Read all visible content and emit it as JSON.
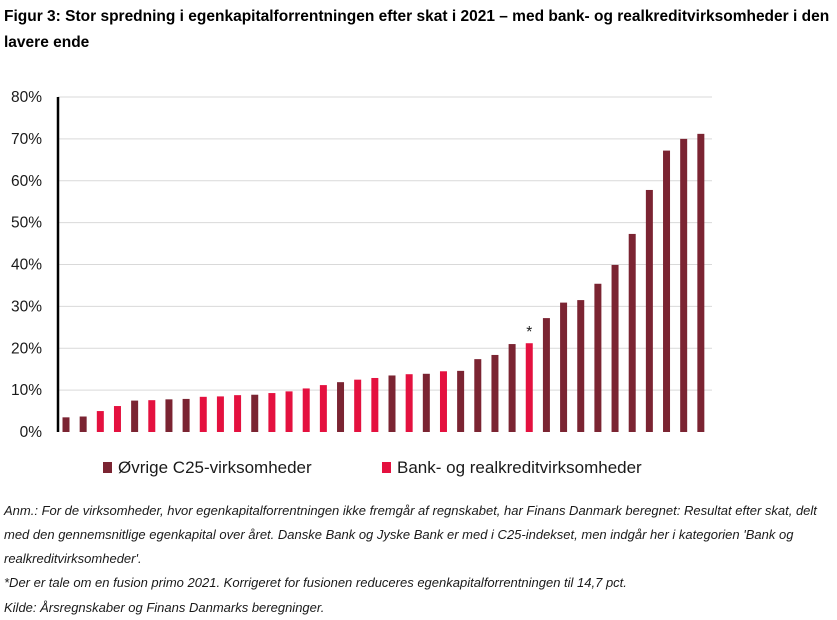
{
  "title": "Figur 3: Stor spredning i egenkapitalforrentningen efter skat i 2021 – med bank- og realkreditvirksomheder i den lavere ende",
  "notes": {
    "anm": "Anm.: For de virksomheder, hvor egenkapitalforrentningen ikke fremgår af regnskabet, har Finans Danmark beregnet: Resultat efter skat, delt med den gennemsnitlige egenkapital over året. Danske Bank og Jyske Bank er med i C25-indekset, men indgår her i kategorien 'Bank og realkreditvirksomheder'.",
    "footnote": "*Der er tale om en fusion primo 2021. Korrigeret for fusionen reduceres egenkapitalforrentningen til 14,7 pct.",
    "kilde": "Kilde: Årsregnskaber og Finans Danmarks beregninger."
  },
  "colors": {
    "other": "#7b2432",
    "bank": "#e4113f"
  },
  "chart_data": {
    "type": "bar",
    "title": "",
    "xlabel": "",
    "ylabel": "",
    "ylim": [
      0,
      80
    ],
    "yticks": [
      "0%",
      "10%",
      "20%",
      "30%",
      "40%",
      "50%",
      "60%",
      "70%",
      "80%"
    ],
    "grid": true,
    "legend_position": "bottom",
    "series": [
      {
        "name": "Øvrige C25-virksomheder",
        "key": "other"
      },
      {
        "name": "Bank- og realkreditvirksomheder",
        "key": "bank"
      }
    ],
    "values": [
      3.5,
      3.7,
      5.0,
      6.2,
      7.5,
      7.6,
      7.8,
      7.9,
      8.4,
      8.5,
      8.8,
      8.9,
      9.3,
      9.7,
      10.4,
      11.2,
      11.9,
      12.5,
      12.9,
      13.5,
      13.8,
      13.9,
      14.5,
      14.6,
      17.4,
      18.4,
      21.0,
      21.2,
      27.2,
      30.9,
      31.5,
      35.4,
      39.9,
      47.3,
      57.8,
      67.2,
      70.0,
      71.2
    ],
    "groups": [
      "other",
      "other",
      "bank",
      "bank",
      "other",
      "bank",
      "other",
      "other",
      "bank",
      "bank",
      "bank",
      "other",
      "bank",
      "bank",
      "bank",
      "bank",
      "other",
      "bank",
      "bank",
      "other",
      "bank",
      "other",
      "bank",
      "other",
      "other",
      "other",
      "other",
      "bank",
      "other",
      "other",
      "other",
      "other",
      "other",
      "other",
      "other",
      "other",
      "other",
      "other"
    ],
    "annotations": [
      {
        "index": 27,
        "text": "*"
      }
    ]
  }
}
